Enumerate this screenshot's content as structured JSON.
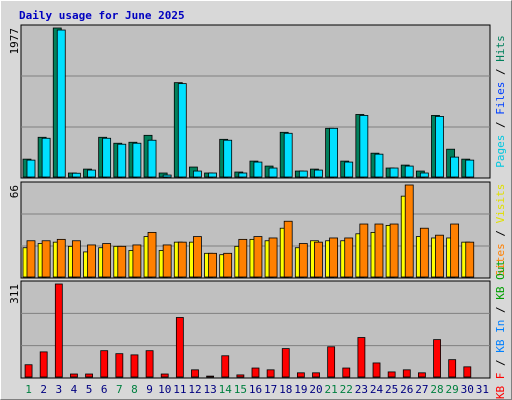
{
  "chart_data": {
    "type": "bar",
    "title": "Daily usage for June 2025",
    "categories": [
      "1",
      "2",
      "3",
      "4",
      "5",
      "6",
      "7",
      "8",
      "9",
      "10",
      "11",
      "12",
      "13",
      "14",
      "15",
      "16",
      "17",
      "18",
      "19",
      "20",
      "21",
      "22",
      "23",
      "24",
      "25",
      "26",
      "27",
      "28",
      "29",
      "30",
      "31"
    ],
    "category_colors": [
      "#008040",
      "#000080",
      "#000080",
      "#000080",
      "#000080",
      "#000080",
      "#008040",
      "#008040",
      "#000080",
      "#000080",
      "#000080",
      "#000080",
      "#000080",
      "#008040",
      "#008040",
      "#000080",
      "#000080",
      "#000080",
      "#000080",
      "#000080",
      "#008040",
      "#008040",
      "#000080",
      "#000080",
      "#000080",
      "#000080",
      "#000080",
      "#008040",
      "#008040",
      "#000080",
      "#000080"
    ],
    "panels": [
      {
        "ylim": [
          0,
          1977
        ],
        "yticks": [
          1977
        ],
        "series": [
          {
            "name": "Hits",
            "color": "#00805c",
            "values": [
              237,
              527,
              1977,
              53,
              105,
              527,
              448,
              461,
              553,
              53,
              1252,
              132,
              53,
              500,
              66,
              211,
              145,
              593,
              79,
              105,
              646,
              211,
              830,
              316,
              119,
              158,
              79,
              817,
              369,
              237,
              null
            ]
          },
          {
            "name": "Pages",
            "color": "#00e0ff",
            "values": [
              224,
              514,
              1950,
              50,
              92,
              514,
              435,
              448,
              488,
              26,
              1239,
              79,
              53,
              488,
              53,
              198,
              119,
              580,
              79,
              92,
              646,
              198,
              817,
              303,
              119,
              145,
              53,
              804,
              264,
              224,
              null
            ]
          }
        ],
        "legend": [
          {
            "text": "Pages",
            "color": "#00c8e0"
          },
          {
            "text": " / ",
            "color": "#000000"
          },
          {
            "text": "Files",
            "color": "#0040ff"
          },
          {
            "text": " / ",
            "color": "#000000"
          },
          {
            "text": "Hits",
            "color": "#00805c"
          }
        ]
      },
      {
        "ylim": [
          0,
          66
        ],
        "yticks": [
          66
        ],
        "series": [
          {
            "name": "Visits",
            "color": "#ffff00",
            "values": [
              21,
              24,
              25,
              22,
              18,
              21,
              22,
              19,
              29,
              19,
              25,
              25,
              17,
              16,
              22,
              27,
              26,
              35,
              21,
              26,
              26,
              26,
              31,
              32,
              37,
              58,
              29,
              28,
              28,
              25,
              null
            ]
          },
          {
            "name": "Sites",
            "color": "#ff8000",
            "values": [
              26,
              26,
              27,
              26,
              23,
              24,
              22,
              23,
              32,
              23,
              25,
              29,
              17,
              17,
              27,
              29,
              28,
              40,
              24,
              25,
              28,
              28,
              38,
              38,
              38,
              66,
              35,
              30,
              38,
              25,
              null
            ]
          }
        ],
        "legend": [
          {
            "text": "Sites",
            "color": "#ff8000"
          },
          {
            "text": " / ",
            "color": "#000000"
          },
          {
            "text": "Visits",
            "color": "#e0e000"
          }
        ]
      },
      {
        "ylim": [
          0,
          311
        ],
        "yticks": [
          311
        ],
        "series": [
          {
            "name": "KB F",
            "color": "#ff0000",
            "values": [
              41,
              84,
              311,
              10,
              10,
              88,
              78,
              74,
              88,
              10,
              199,
              24,
              3,
              71,
              7,
              30,
              24,
              95,
              14,
              14,
              101,
              30,
              132,
              47,
              17,
              24,
              14,
              125,
              58,
              34,
              null
            ]
          }
        ],
        "legend": [
          {
            "text": "KB F",
            "color": "#ff0000"
          },
          {
            "text": " / ",
            "color": "#000000"
          },
          {
            "text": "KB In",
            "color": "#0080ff"
          },
          {
            "text": " / ",
            "color": "#000000"
          },
          {
            "text": "KB Out",
            "color": "#00a000"
          }
        ]
      }
    ]
  }
}
